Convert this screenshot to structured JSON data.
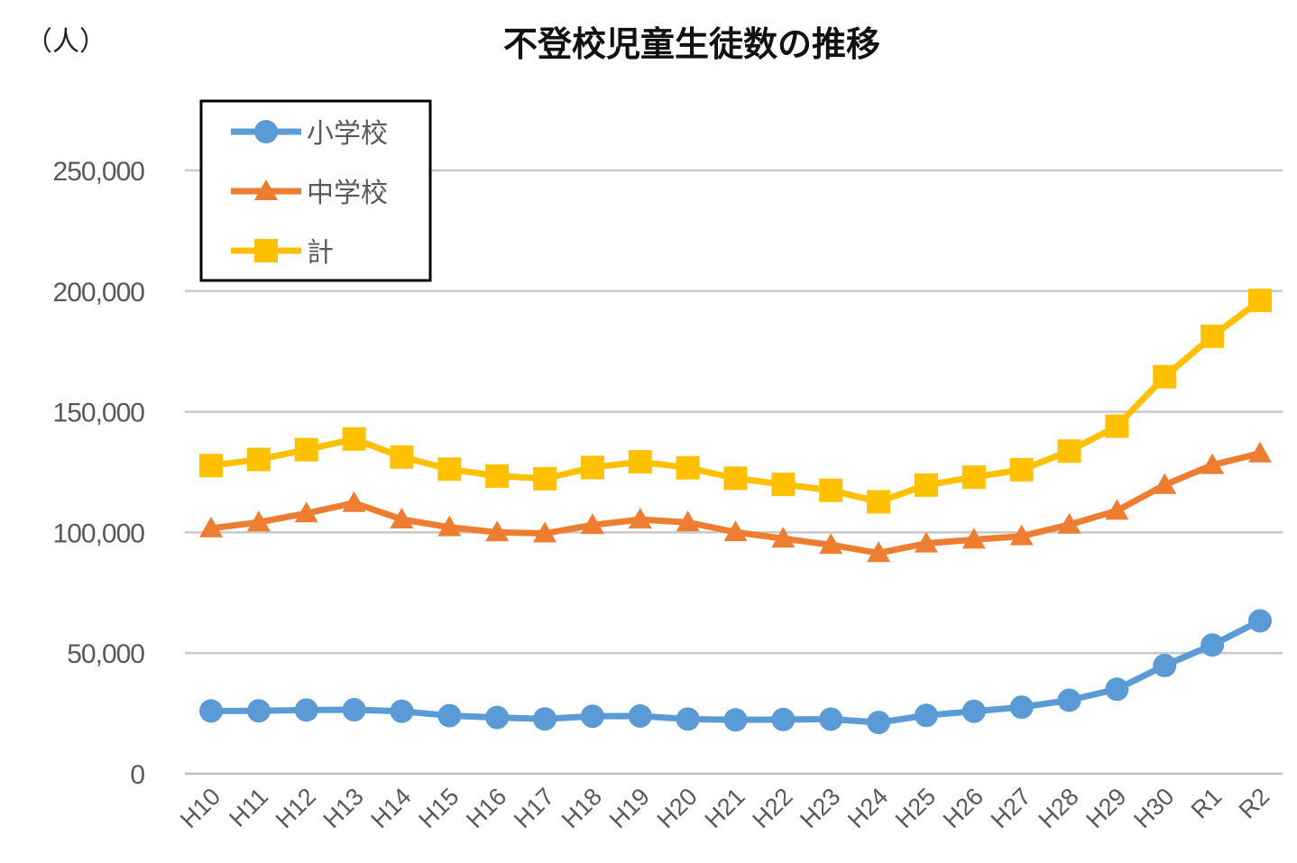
{
  "chart_data": {
    "type": "line",
    "title": "不登校児童生徒数の推移",
    "ylabel": "（人）",
    "xlabel": "",
    "ylim": [
      0,
      250000
    ],
    "yticks": [
      0,
      50000,
      100000,
      150000,
      200000,
      250000
    ],
    "ytick_labels": [
      "0",
      "50,000",
      "100,000",
      "150,000",
      "200,000",
      "250,000"
    ],
    "grid": true,
    "legend_position": "top-left",
    "categories": [
      "H10",
      "H11",
      "H12",
      "H13",
      "H14",
      "H15",
      "H16",
      "H17",
      "H18",
      "H19",
      "H20",
      "H21",
      "H22",
      "H23",
      "H24",
      "H25",
      "H26",
      "H27",
      "H28",
      "H29",
      "H30",
      "R1",
      "R2"
    ],
    "series": [
      {
        "name": "小学校",
        "color": "#5B9BD5",
        "marker": "circle",
        "values": [
          26017,
          26047,
          26373,
          26511,
          25869,
          24077,
          23318,
          22709,
          23825,
          23927,
          22652,
          22327,
          22463,
          22622,
          21243,
          24175,
          25864,
          27583,
          30448,
          35032,
          44841,
          53350,
          63350
        ]
      },
      {
        "name": "中学校",
        "color": "#ED7D31",
        "marker": "triangle",
        "values": [
          101675,
          104180,
          107913,
          112211,
          105383,
          102149,
          100040,
          99578,
          103069,
          105328,
          104153,
          100105,
          97428,
          94836,
          91446,
          95442,
          97033,
          98408,
          103235,
          108999,
          119687,
          127922,
          132777
        ]
      },
      {
        "name": "計",
        "color": "#FFC000",
        "marker": "square",
        "values": [
          127692,
          130227,
          134286,
          138722,
          131252,
          126226,
          123358,
          122287,
          126894,
          129255,
          126805,
          122432,
          119891,
          117458,
          112689,
          119617,
          122897,
          125991,
          133683,
          144031,
          164528,
          181272,
          196127
        ]
      }
    ]
  }
}
